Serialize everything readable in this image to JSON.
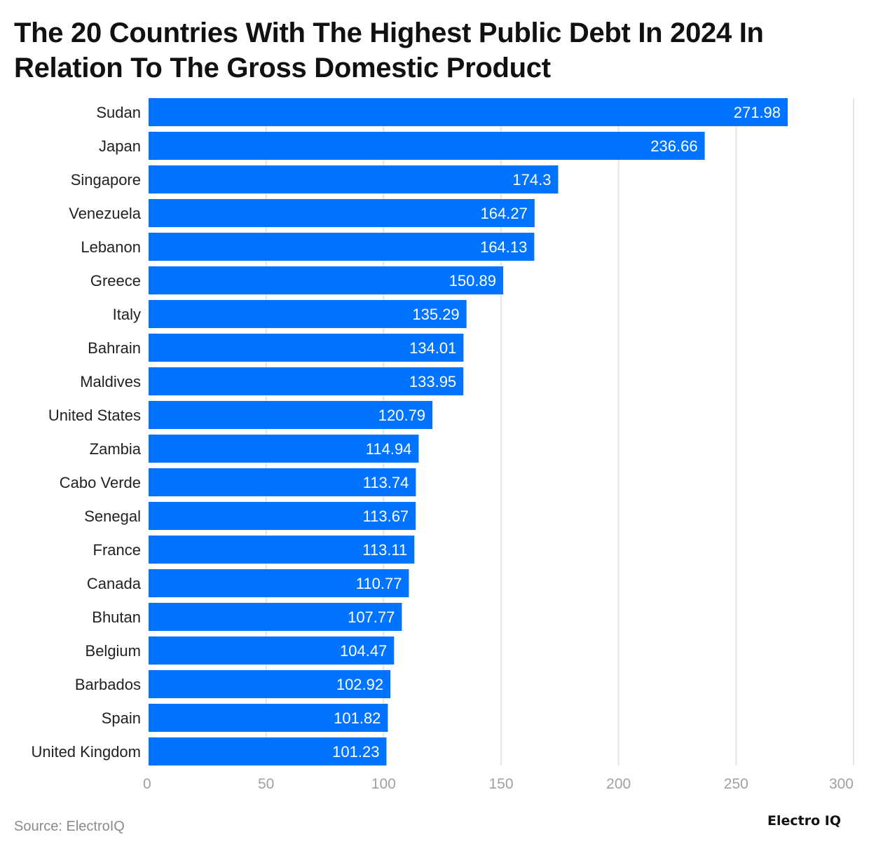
{
  "chart_data": {
    "type": "bar",
    "orientation": "horizontal",
    "title": "The 20 Countries With The Highest Public Debt In 2024 In Relation To The Gross Domestic Product",
    "categories": [
      "Sudan",
      "Japan",
      "Singapore",
      "Venezuela",
      "Lebanon",
      "Greece",
      "Italy",
      "Bahrain",
      "Maldives",
      "United States",
      "Zambia",
      "Cabo Verde",
      "Senegal",
      "France",
      "Canada",
      "Bhutan",
      "Belgium",
      "Barbados",
      "Spain",
      "United Kingdom"
    ],
    "values": [
      271.98,
      236.66,
      174.3,
      164.27,
      164.13,
      150.89,
      135.29,
      134.01,
      133.95,
      120.79,
      114.94,
      113.74,
      113.67,
      113.11,
      110.77,
      107.77,
      104.47,
      102.92,
      101.82,
      101.23
    ],
    "value_labels": [
      "271.98",
      "236.66",
      "174.3",
      "164.27",
      "164.13",
      "150.89",
      "135.29",
      "134.01",
      "133.95",
      "120.79",
      "114.94",
      "113.74",
      "113.67",
      "113.11",
      "110.77",
      "107.77",
      "104.47",
      "102.92",
      "101.82",
      "101.23"
    ],
    "xlim": [
      0,
      300
    ],
    "xticks": [
      "0",
      "50",
      "100",
      "150",
      "200",
      "250",
      "300"
    ],
    "xlabel": "",
    "ylabel": "",
    "grid": true,
    "bar_color": "#0073ff",
    "grid_color": "#e6e6e6"
  },
  "footer": {
    "source": "Source: ElectroIQ",
    "brand": "Electro IQ"
  }
}
